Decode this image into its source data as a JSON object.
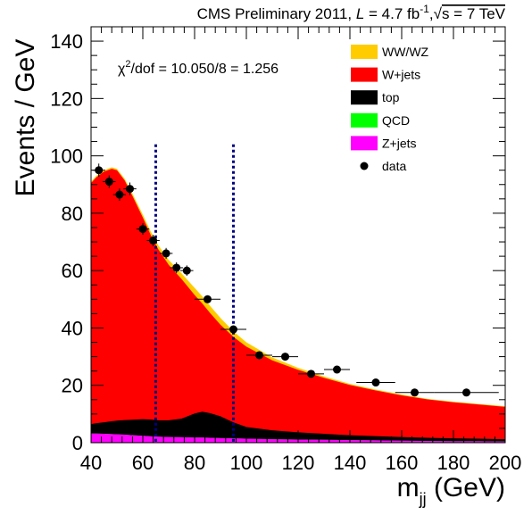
{
  "header": {
    "prefix": "CMS Preliminary 2011, ",
    "lumi_symbol": "L",
    "lumi_value": " = 4.7 fb",
    "lumi_exp": "-1",
    "sep": ",",
    "sqrt": "√",
    "energy": "s = 7 TeV"
  },
  "chi2": {
    "symbol": "χ",
    "exp": "2",
    "text": "/dof = 10.050/8 = 1.256"
  },
  "chart_data": {
    "type": "area",
    "xlabel_main": "m",
    "xlabel_sub": "jj",
    "xlabel_unit": " (GeV)",
    "ylabel": "Events / GeV",
    "xlim": [
      40,
      200
    ],
    "ylim": [
      0,
      145
    ],
    "xticks": [
      40,
      60,
      80,
      100,
      120,
      140,
      160,
      180,
      200
    ],
    "yticks": [
      0,
      20,
      40,
      60,
      80,
      100,
      120,
      140
    ],
    "x": [
      40,
      42,
      45,
      48,
      50,
      53,
      56,
      60,
      63,
      66,
      70,
      75,
      80,
      83,
      86,
      90,
      95,
      100,
      110,
      120,
      130,
      140,
      150,
      160,
      170,
      180,
      190,
      200
    ],
    "series": [
      {
        "name": "Z+jets",
        "color": "#ff00ff",
        "values": [
          3.2,
          3.2,
          3.1,
          3.0,
          2.9,
          2.8,
          2.6,
          2.4,
          2.2,
          2.1,
          2.0,
          1.9,
          1.8,
          1.8,
          1.7,
          1.6,
          1.5,
          1.4,
          1.2,
          1.1,
          1.0,
          0.9,
          0.8,
          0.7,
          0.6,
          0.5,
          0.5,
          0.4
        ]
      },
      {
        "name": "QCD",
        "color": "#00ff00",
        "values": [
          0,
          0,
          0,
          0,
          0,
          0,
          0,
          0,
          0,
          0,
          0,
          0,
          0,
          0,
          0,
          0,
          0,
          0,
          0,
          0,
          0,
          0,
          0,
          0,
          0,
          0,
          0,
          0
        ]
      },
      {
        "name": "top",
        "color": "#000000",
        "values": [
          3.3,
          3.6,
          4.0,
          4.5,
          4.8,
          5.1,
          5.4,
          5.8,
          5.9,
          5.7,
          5.8,
          6.5,
          8.4,
          9.0,
          8.6,
          7.6,
          5.6,
          4.1,
          3.1,
          2.5,
          2.1,
          1.7,
          1.5,
          1.3,
          1.1,
          1.0,
          0.9,
          0.8
        ]
      },
      {
        "name": "W+jets",
        "color": "#ff0000",
        "values": [
          84.0,
          85.7,
          87.4,
          88.0,
          87.3,
          83.5,
          78.0,
          70.3,
          64.4,
          59.6,
          54.2,
          48.6,
          41.3,
          37.7,
          34.9,
          31.9,
          29.8,
          28.0,
          24.4,
          21.8,
          19.5,
          17.5,
          15.9,
          14.5,
          13.4,
          12.6,
          11.9,
          11.3
        ]
      },
      {
        "name": "WW/WZ",
        "color": "#ffcc00",
        "values": [
          0.5,
          0.5,
          0.5,
          0.5,
          0.5,
          0.6,
          0.8,
          1.0,
          1.2,
          1.4,
          1.7,
          2.0,
          2.5,
          2.5,
          2.5,
          2.4,
          1.9,
          1.5,
          1.0,
          0.7,
          0.5,
          0.4,
          0.3,
          0.3,
          0.2,
          0.2,
          0.2,
          0.2
        ]
      }
    ],
    "data": {
      "name": "data",
      "color": "#000000",
      "points": [
        {
          "x": 43,
          "y": 95,
          "xerr": 2.5,
          "yerr": 2.3
        },
        {
          "x": 47,
          "y": 91,
          "xerr": 2.5,
          "yerr": 2.2
        },
        {
          "x": 51,
          "y": 86.5,
          "xerr": 2.5,
          "yerr": 2.2
        },
        {
          "x": 55,
          "y": 88.5,
          "xerr": 2.5,
          "yerr": 2.2
        },
        {
          "x": 60,
          "y": 74.5,
          "xerr": 2.5,
          "yerr": 2.0
        },
        {
          "x": 64,
          "y": 70.5,
          "xerr": 2.5,
          "yerr": 2.0
        },
        {
          "x": 69,
          "y": 66,
          "xerr": 2.5,
          "yerr": 1.9
        },
        {
          "x": 73,
          "y": 61,
          "xerr": 2.5,
          "yerr": 1.9
        },
        {
          "x": 77,
          "y": 60,
          "xerr": 2.5,
          "yerr": 1.8
        },
        {
          "x": 85,
          "y": 50,
          "xerr": 5.0,
          "yerr": 1.3
        },
        {
          "x": 95,
          "y": 39.5,
          "xerr": 5.0,
          "yerr": 1.2
        },
        {
          "x": 105,
          "y": 30.5,
          "xerr": 5.0,
          "yerr": 1.1
        },
        {
          "x": 115,
          "y": 30,
          "xerr": 5.0,
          "yerr": 1.1
        },
        {
          "x": 125,
          "y": 24,
          "xerr": 5.0,
          "yerr": 1.0
        },
        {
          "x": 135,
          "y": 25.5,
          "xerr": 5.0,
          "yerr": 1.0
        },
        {
          "x": 150,
          "y": 21,
          "xerr": 7.5,
          "yerr": 0.8
        },
        {
          "x": 165,
          "y": 17.5,
          "xerr": 7.5,
          "yerr": 0.7
        },
        {
          "x": 185,
          "y": 17.5,
          "xerr": 12.5,
          "yerr": 0.6
        }
      ]
    },
    "vlines": [
      65,
      95
    ],
    "legend_order": [
      "WW/WZ",
      "W+jets",
      "top",
      "QCD",
      "Z+jets",
      "data"
    ],
    "legend_position": "top-right"
  }
}
